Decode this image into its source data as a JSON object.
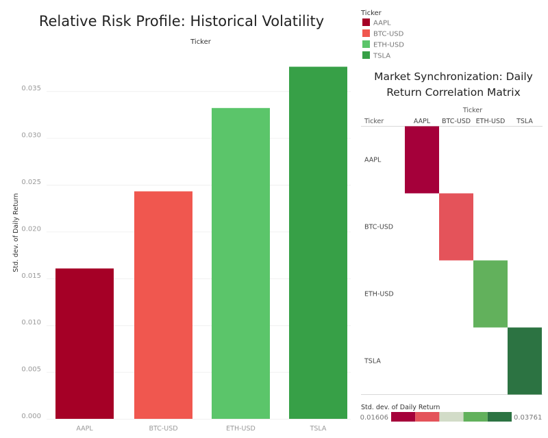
{
  "chart_data": [
    {
      "type": "bar",
      "title": "Relative Risk Profile: Historical Volatility",
      "column_header": "Ticker",
      "xlabel": "",
      "ylabel": "Std. dev. of Daily Return",
      "categories": [
        "AAPL",
        "BTC-USD",
        "ETH-USD",
        "TSLA"
      ],
      "values": [
        0.01606,
        0.0243,
        0.0332,
        0.03761
      ],
      "colors": [
        "#a50026",
        "#f0574f",
        "#5bc56a",
        "#37a047"
      ],
      "ylim": [
        0,
        0.038
      ],
      "yticks": [
        "0.000",
        "0.005",
        "0.010",
        "0.015",
        "0.020",
        "0.025",
        "0.030",
        "0.035"
      ],
      "grid": true
    },
    {
      "type": "heatmap",
      "title_lines": [
        "Market Synchronization: Daily",
        "Return Correlation Matrix"
      ],
      "column_header": "Ticker",
      "row_header": "Ticker",
      "columns": [
        "AAPL",
        "BTC-USD",
        "ETH-USD",
        "TSLA"
      ],
      "rows": [
        "AAPL",
        "BTC-USD",
        "ETH-USD",
        "TSLA"
      ],
      "cells": [
        {
          "row": "AAPL",
          "col": "AAPL",
          "value": 0.01606,
          "color": "#a5003a"
        },
        {
          "row": "BTC-USD",
          "col": "BTC-USD",
          "value": 0.0243,
          "color": "#e4535a"
        },
        {
          "row": "ETH-USD",
          "col": "ETH-USD",
          "value": 0.0332,
          "color": "#62b15c"
        },
        {
          "row": "TSLA",
          "col": "TSLA",
          "value": 0.03761,
          "color": "#2c7342"
        }
      ],
      "color_legend": {
        "title": "Std. dev. of Daily Return",
        "min_label": "0.01606",
        "max_label": "0.03761",
        "colors": [
          "#a5003a",
          "#e4535a",
          "#d2dcc8",
          "#62b15c",
          "#2c7342"
        ]
      }
    }
  ],
  "legend": {
    "title": "Ticker",
    "items": [
      {
        "label": "AAPL",
        "color": "#a50026"
      },
      {
        "label": "BTC-USD",
        "color": "#f0574f"
      },
      {
        "label": "ETH-USD",
        "color": "#5bc56a"
      },
      {
        "label": "TSLA",
        "color": "#37a047"
      }
    ]
  }
}
